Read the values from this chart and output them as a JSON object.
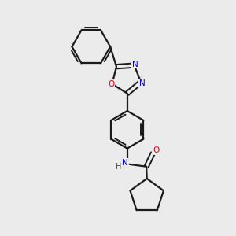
{
  "bg_color": "#ebebeb",
  "bond_color": "#1a1a1a",
  "atom_colors": {
    "N": "#0000e0",
    "O": "#e00000",
    "NH": "#0000e0",
    "H": "#444444"
  },
  "figsize": [
    3.0,
    3.0
  ],
  "dpi": 100,
  "xlim": [
    0,
    10
  ],
  "ylim": [
    0,
    10
  ]
}
